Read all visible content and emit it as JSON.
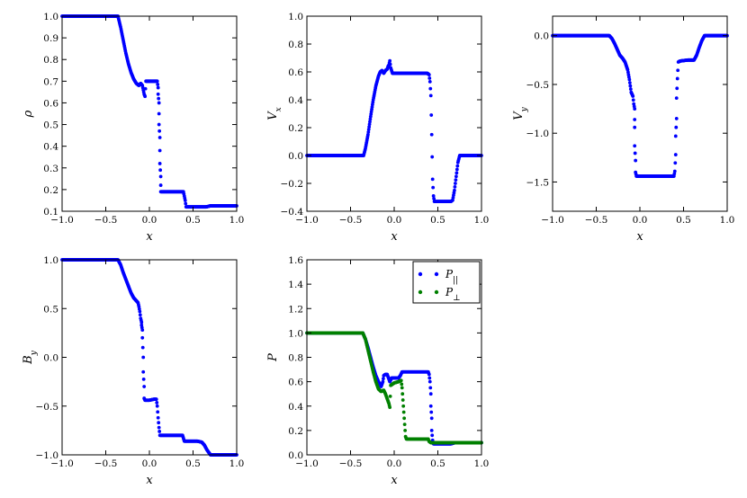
{
  "colors": {
    "blue": "#0000ff",
    "green": "#008000"
  },
  "chart_data": [
    {
      "type": "scatter",
      "panel": "rho",
      "xlabel": "x",
      "ylabel": "ρ",
      "xlim": [
        -1.0,
        1.0
      ],
      "ylim": [
        0.1,
        1.0
      ],
      "xticks": [
        "−1.0",
        "−0.5",
        "0.0",
        "0.5",
        "1.0"
      ],
      "yticks": [
        "0.1",
        "0.2",
        "0.3",
        "0.4",
        "0.5",
        "0.6",
        "0.7",
        "0.8",
        "0.9",
        "1.0"
      ],
      "series": [
        {
          "color": "#0000ff",
          "points": [
            [
              -1.0,
              1.0
            ],
            [
              -0.36,
              1.0
            ],
            [
              -0.33,
              0.95
            ],
            [
              -0.3,
              0.89
            ],
            [
              -0.27,
              0.83
            ],
            [
              -0.24,
              0.78
            ],
            [
              -0.21,
              0.74
            ],
            [
              -0.18,
              0.71
            ],
            [
              -0.15,
              0.69
            ],
            [
              -0.12,
              0.68
            ],
            [
              -0.1,
              0.69
            ],
            [
              -0.08,
              0.68
            ],
            [
              -0.07,
              0.66
            ],
            [
              -0.06,
              0.64
            ],
            [
              -0.05,
              0.63
            ],
            [
              -0.04,
              0.7
            ],
            [
              0.0,
              0.7
            ],
            [
              0.05,
              0.7
            ],
            [
              0.09,
              0.7
            ],
            [
              0.1,
              0.67
            ],
            [
              0.1,
              0.64
            ],
            [
              0.11,
              0.6
            ],
            [
              0.11,
              0.55
            ],
            [
              0.11,
              0.5
            ],
            [
              0.12,
              0.44
            ],
            [
              0.12,
              0.38
            ],
            [
              0.12,
              0.32
            ],
            [
              0.13,
              0.26
            ],
            [
              0.13,
              0.22
            ],
            [
              0.13,
              0.19
            ],
            [
              0.15,
              0.19
            ],
            [
              0.25,
              0.19
            ],
            [
              0.39,
              0.19
            ],
            [
              0.4,
              0.17
            ],
            [
              0.41,
              0.15
            ],
            [
              0.42,
              0.12
            ],
            [
              0.45,
              0.12
            ],
            [
              0.55,
              0.12
            ],
            [
              0.65,
              0.12
            ],
            [
              0.7,
              0.125
            ],
            [
              1.0,
              0.125
            ]
          ]
        }
      ]
    },
    {
      "type": "scatter",
      "panel": "vx",
      "xlabel": "x",
      "ylabel": "V_x",
      "xlim": [
        -1.0,
        1.0
      ],
      "ylim": [
        -0.4,
        1.0
      ],
      "xticks": [
        "−1.0",
        "−0.5",
        "0.0",
        "0.5",
        "1.0"
      ],
      "yticks": [
        "−0.4",
        "−0.2",
        "0.0",
        "0.2",
        "0.4",
        "0.6",
        "0.8",
        "1.0"
      ],
      "series": [
        {
          "color": "#0000ff",
          "points": [
            [
              -1.0,
              0.0
            ],
            [
              -0.35,
              0.0
            ],
            [
              -0.33,
              0.05
            ],
            [
              -0.3,
              0.15
            ],
            [
              -0.27,
              0.28
            ],
            [
              -0.24,
              0.4
            ],
            [
              -0.21,
              0.5
            ],
            [
              -0.18,
              0.57
            ],
            [
              -0.16,
              0.6
            ],
            [
              -0.14,
              0.61
            ],
            [
              -0.12,
              0.59
            ],
            [
              -0.1,
              0.61
            ],
            [
              -0.08,
              0.62
            ],
            [
              -0.07,
              0.64
            ],
            [
              -0.06,
              0.65
            ],
            [
              -0.05,
              0.68
            ],
            [
              -0.04,
              0.63
            ],
            [
              -0.02,
              0.59
            ],
            [
              0.05,
              0.59
            ],
            [
              0.2,
              0.59
            ],
            [
              0.38,
              0.59
            ],
            [
              0.4,
              0.58
            ],
            [
              0.41,
              0.53
            ],
            [
              0.42,
              0.43
            ],
            [
              0.43,
              0.15
            ],
            [
              0.44,
              -0.17
            ],
            [
              0.45,
              -0.29
            ],
            [
              0.46,
              -0.33
            ],
            [
              0.55,
              -0.33
            ],
            [
              0.65,
              -0.33
            ],
            [
              0.67,
              -0.32
            ],
            [
              0.69,
              -0.25
            ],
            [
              0.71,
              -0.15
            ],
            [
              0.73,
              -0.05
            ],
            [
              0.75,
              0.0
            ],
            [
              1.0,
              0.0
            ]
          ]
        }
      ]
    },
    {
      "type": "scatter",
      "panel": "vy",
      "xlabel": "x",
      "ylabel": "V_y",
      "xlim": [
        -1.0,
        1.0
      ],
      "ylim": [
        -1.8,
        0.2
      ],
      "xticks": [
        "−1.0",
        "−0.5",
        "0.0",
        "0.5",
        "1.0"
      ],
      "yticks": [
        "−1.5",
        "−1.0",
        "−0.5",
        "0.0"
      ],
      "series": [
        {
          "color": "#0000ff",
          "points": [
            [
              -1.0,
              0.0
            ],
            [
              -0.35,
              0.0
            ],
            [
              -0.32,
              -0.03
            ],
            [
              -0.29,
              -0.08
            ],
            [
              -0.26,
              -0.14
            ],
            [
              -0.23,
              -0.2
            ],
            [
              -0.2,
              -0.23
            ],
            [
              -0.17,
              -0.27
            ],
            [
              -0.14,
              -0.35
            ],
            [
              -0.12,
              -0.45
            ],
            [
              -0.1,
              -0.58
            ],
            [
              -0.08,
              -0.62
            ],
            [
              -0.07,
              -0.7
            ],
            [
              -0.06,
              -0.75
            ],
            [
              -0.06,
              -0.86
            ],
            [
              -0.06,
              -0.94
            ],
            [
              -0.06,
              -1.13
            ],
            [
              -0.05,
              -1.28
            ],
            [
              -0.05,
              -1.4
            ],
            [
              -0.04,
              -1.44
            ],
            [
              0.05,
              -1.44
            ],
            [
              0.2,
              -1.44
            ],
            [
              0.39,
              -1.44
            ],
            [
              0.4,
              -1.39
            ],
            [
              0.41,
              -1.22
            ],
            [
              0.41,
              -1.03
            ],
            [
              0.42,
              -0.85
            ],
            [
              0.42,
              -0.64
            ],
            [
              0.43,
              -0.44
            ],
            [
              0.44,
              -0.27
            ],
            [
              0.46,
              -0.26
            ],
            [
              0.55,
              -0.25
            ],
            [
              0.62,
              -0.25
            ],
            [
              0.65,
              -0.2
            ],
            [
              0.68,
              -0.12
            ],
            [
              0.71,
              -0.05
            ],
            [
              0.74,
              0.0
            ],
            [
              1.0,
              0.0
            ]
          ]
        }
      ]
    },
    {
      "type": "scatter",
      "panel": "by",
      "xlabel": "x",
      "ylabel": "B_y",
      "xlim": [
        -1.0,
        1.0
      ],
      "ylim": [
        -1.0,
        1.0
      ],
      "xticks": [
        "−1.0",
        "−0.5",
        "0.0",
        "0.5",
        "1.0"
      ],
      "yticks": [
        "−1.0",
        "−0.5",
        "0.0",
        "0.5",
        "1.0"
      ],
      "series": [
        {
          "color": "#0000ff",
          "points": [
            [
              -1.0,
              1.0
            ],
            [
              -0.36,
              1.0
            ],
            [
              -0.33,
              0.95
            ],
            [
              -0.3,
              0.87
            ],
            [
              -0.27,
              0.8
            ],
            [
              -0.24,
              0.73
            ],
            [
              -0.21,
              0.66
            ],
            [
              -0.18,
              0.61
            ],
            [
              -0.15,
              0.58
            ],
            [
              -0.13,
              0.56
            ],
            [
              -0.12,
              0.52
            ],
            [
              -0.11,
              0.47
            ],
            [
              -0.1,
              0.4
            ],
            [
              -0.09,
              0.36
            ],
            [
              -0.09,
              0.33
            ],
            [
              -0.08,
              0.28
            ],
            [
              -0.08,
              0.2
            ],
            [
              -0.07,
              0.0
            ],
            [
              -0.07,
              -0.15
            ],
            [
              -0.06,
              -0.3
            ],
            [
              -0.06,
              -0.42
            ],
            [
              -0.05,
              -0.44
            ],
            [
              0.0,
              -0.44
            ],
            [
              0.05,
              -0.43
            ],
            [
              0.08,
              -0.43
            ],
            [
              0.09,
              -0.5
            ],
            [
              0.1,
              -0.62
            ],
            [
              0.11,
              -0.72
            ],
            [
              0.12,
              -0.8
            ],
            [
              0.2,
              -0.8
            ],
            [
              0.38,
              -0.8
            ],
            [
              0.4,
              -0.86
            ],
            [
              0.45,
              -0.86
            ],
            [
              0.55,
              -0.86
            ],
            [
              0.6,
              -0.87
            ],
            [
              0.63,
              -0.9
            ],
            [
              0.66,
              -0.95
            ],
            [
              0.7,
              -1.0
            ],
            [
              1.0,
              -1.0
            ]
          ]
        }
      ]
    },
    {
      "type": "scatter",
      "panel": "p",
      "xlabel": "x",
      "ylabel": "P",
      "xlim": [
        -1.0,
        1.0
      ],
      "ylim": [
        0.0,
        1.6
      ],
      "xticks": [
        "−1.0",
        "−0.5",
        "0.0",
        "0.5",
        "1.0"
      ],
      "yticks": [
        "0.0",
        "0.2",
        "0.4",
        "0.6",
        "0.8",
        "1.0",
        "1.2",
        "1.4",
        "1.6"
      ],
      "legend": "top-right",
      "series": [
        {
          "name": "P_||",
          "color": "#0000ff",
          "points": [
            [
              -1.0,
              1.0
            ],
            [
              -0.36,
              1.0
            ],
            [
              -0.33,
              0.95
            ],
            [
              -0.3,
              0.88
            ],
            [
              -0.27,
              0.8
            ],
            [
              -0.24,
              0.72
            ],
            [
              -0.21,
              0.65
            ],
            [
              -0.18,
              0.6
            ],
            [
              -0.15,
              0.56
            ],
            [
              -0.13,
              0.6
            ],
            [
              -0.12,
              0.65
            ],
            [
              -0.1,
              0.66
            ],
            [
              -0.08,
              0.66
            ],
            [
              -0.06,
              0.62
            ],
            [
              -0.05,
              0.6
            ],
            [
              -0.03,
              0.63
            ],
            [
              0.0,
              0.63
            ],
            [
              0.05,
              0.63
            ],
            [
              0.07,
              0.65
            ],
            [
              0.09,
              0.68
            ],
            [
              0.15,
              0.68
            ],
            [
              0.3,
              0.68
            ],
            [
              0.39,
              0.68
            ],
            [
              0.4,
              0.66
            ],
            [
              0.41,
              0.6
            ],
            [
              0.42,
              0.5
            ],
            [
              0.42,
              0.4
            ],
            [
              0.43,
              0.3
            ],
            [
              0.43,
              0.2
            ],
            [
              0.44,
              0.12
            ],
            [
              0.45,
              0.09
            ],
            [
              0.55,
              0.09
            ],
            [
              0.65,
              0.09
            ],
            [
              0.7,
              0.1
            ],
            [
              1.0,
              0.1
            ]
          ]
        },
        {
          "name": "P_⊥",
          "color": "#008000",
          "points": [
            [
              -1.0,
              1.0
            ],
            [
              -0.36,
              1.0
            ],
            [
              -0.33,
              0.95
            ],
            [
              -0.3,
              0.86
            ],
            [
              -0.27,
              0.77
            ],
            [
              -0.24,
              0.68
            ],
            [
              -0.21,
              0.6
            ],
            [
              -0.18,
              0.54
            ],
            [
              -0.15,
              0.52
            ],
            [
              -0.12,
              0.53
            ],
            [
              -0.1,
              0.5
            ],
            [
              -0.08,
              0.46
            ],
            [
              -0.06,
              0.42
            ],
            [
              -0.05,
              0.39
            ],
            [
              -0.04,
              0.57
            ],
            [
              0.0,
              0.59
            ],
            [
              0.05,
              0.6
            ],
            [
              0.08,
              0.61
            ],
            [
              0.09,
              0.55
            ],
            [
              0.1,
              0.45
            ],
            [
              0.11,
              0.35
            ],
            [
              0.12,
              0.25
            ],
            [
              0.13,
              0.15
            ],
            [
              0.14,
              0.13
            ],
            [
              0.25,
              0.13
            ],
            [
              0.39,
              0.13
            ],
            [
              0.4,
              0.11
            ],
            [
              0.42,
              0.1
            ],
            [
              0.45,
              0.1
            ],
            [
              0.6,
              0.1
            ],
            [
              0.7,
              0.1
            ],
            [
              1.0,
              0.1
            ]
          ]
        }
      ]
    }
  ]
}
